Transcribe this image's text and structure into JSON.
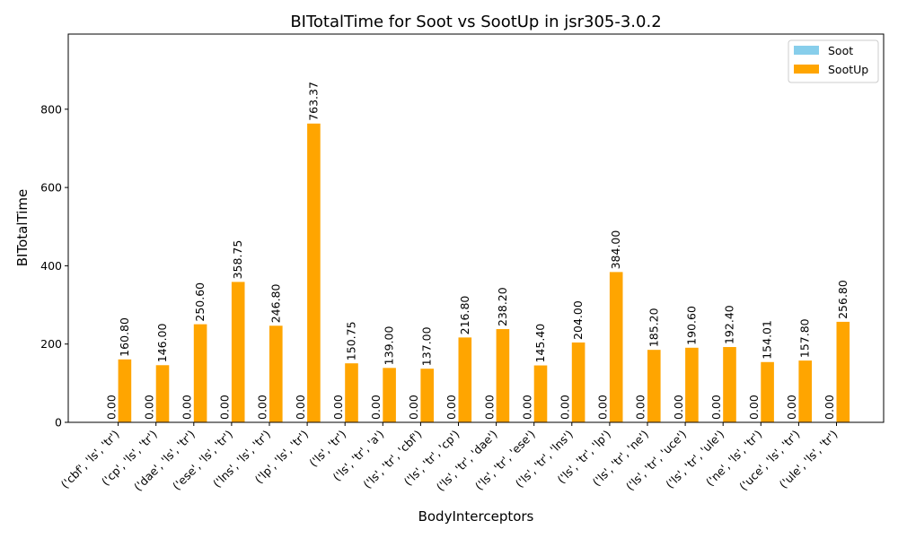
{
  "chart_data": {
    "type": "bar",
    "title": "BITotalTime for Soot vs SootUp in jsr305-3.0.2",
    "xlabel": "BodyInterceptors",
    "ylabel": "BITotalTime",
    "ylim": [
      0,
      992
    ],
    "yticks": [
      0,
      200,
      400,
      600,
      800
    ],
    "grid": false,
    "legend_position": "top-right",
    "categories": [
      "('cbf', 'ls', 'tr')",
      "('cp', 'ls', 'tr')",
      "('dae', 'ls', 'tr')",
      "('ese', 'ls', 'tr')",
      "('lns', 'ls', 'tr')",
      "('lp', 'ls', 'tr')",
      "('ls', 'tr')",
      "('ls', 'tr', 'a')",
      "('ls', 'tr', 'cbf')",
      "('ls', 'tr', 'cp')",
      "('ls', 'tr', 'dae')",
      "('ls', 'tr', 'ese')",
      "('ls', 'tr', 'lns')",
      "('ls', 'tr', 'lp')",
      "('ls', 'tr', 'ne')",
      "('ls', 'tr', 'uce')",
      "('ls', 'tr', 'ule')",
      "('ne', 'ls', 'tr')",
      "('uce', 'ls', 'tr')",
      "('ule', 'ls', 'tr')"
    ],
    "series": [
      {
        "name": "Soot",
        "color": "#87ceeb",
        "values": [
          0,
          0,
          0,
          0,
          0,
          0,
          0,
          0,
          0,
          0,
          0,
          0,
          0,
          0,
          0,
          0,
          0,
          0,
          0,
          0
        ],
        "labels": [
          "0.00",
          "0.00",
          "0.00",
          "0.00",
          "0.00",
          "0.00",
          "0.00",
          "0.00",
          "0.00",
          "0.00",
          "0.00",
          "0.00",
          "0.00",
          "0.00",
          "0.00",
          "0.00",
          "0.00",
          "0.00",
          "0.00",
          "0.00"
        ]
      },
      {
        "name": "SootUp",
        "color": "#ffa500",
        "values": [
          160.8,
          146.0,
          250.6,
          358.75,
          246.8,
          763.37,
          150.75,
          139.0,
          137.0,
          216.8,
          238.2,
          145.4,
          204.0,
          384.0,
          185.2,
          190.6,
          192.4,
          154.01,
          157.8,
          256.8
        ],
        "labels": [
          "160.80",
          "146.00",
          "250.60",
          "358.75",
          "246.80",
          "763.37",
          "150.75",
          "139.00",
          "137.00",
          "216.80",
          "238.20",
          "145.40",
          "204.00",
          "384.00",
          "185.20",
          "190.60",
          "192.40",
          "154.01",
          "157.80",
          "256.80"
        ]
      }
    ]
  }
}
